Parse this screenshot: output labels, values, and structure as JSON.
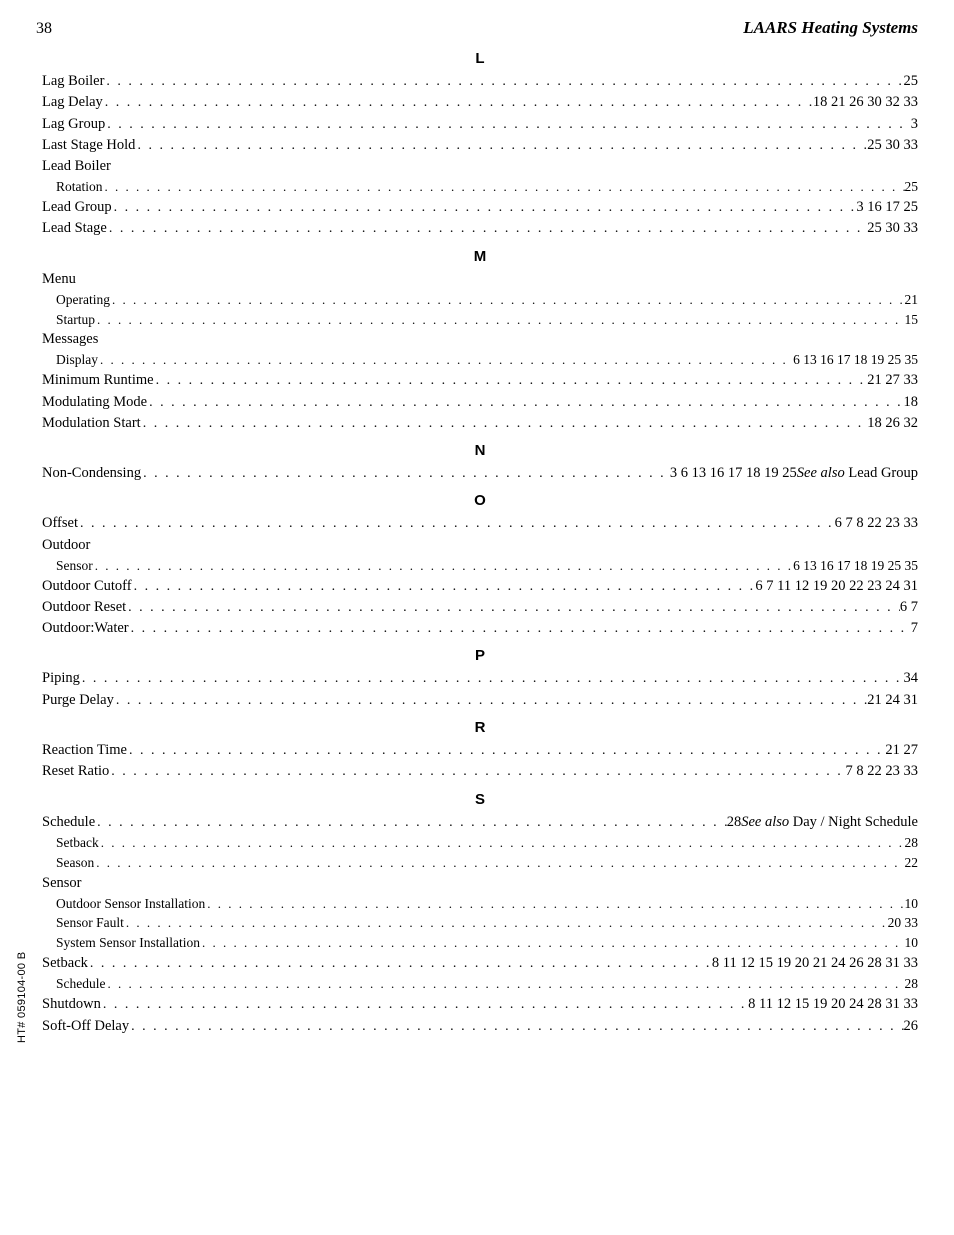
{
  "header": {
    "page_number": "38",
    "brand": "LAARS Heating Systems"
  },
  "side_note": "HT# 059104-00 B",
  "sections": [
    {
      "letter": "L",
      "items": [
        {
          "type": "entry",
          "term": "Lag Boiler",
          "pages": "25"
        },
        {
          "type": "entry",
          "term": "Lag Delay",
          "pages": "18 21 26 30 32 33"
        },
        {
          "type": "entry",
          "term": "Lag Group",
          "pages": "3"
        },
        {
          "type": "entry",
          "term": "Last Stage Hold",
          "pages": "25 30 33"
        },
        {
          "type": "group",
          "label": "Lead Boiler"
        },
        {
          "type": "entry",
          "term": "Rotation",
          "pages": "25",
          "indent": 1
        },
        {
          "type": "entry",
          "term": "Lead Group",
          "pages": "3 16 17 25"
        },
        {
          "type": "entry",
          "term": "Lead Stage",
          "pages": "25 30 33"
        }
      ]
    },
    {
      "letter": "M",
      "items": [
        {
          "type": "group",
          "label": "Menu"
        },
        {
          "type": "entry",
          "term": "Operating",
          "pages": "21",
          "indent": 1
        },
        {
          "type": "entry",
          "term": "Startup",
          "pages": "15",
          "indent": 1
        },
        {
          "type": "group",
          "label": "Messages"
        },
        {
          "type": "entry",
          "term": "Display",
          "pages": "6 13 16 17 18 19 25 35",
          "indent": 1
        },
        {
          "type": "entry",
          "term": "Minimum Runtime",
          "pages": "21 27 33"
        },
        {
          "type": "entry",
          "term": "Modulating Mode",
          "pages": "18"
        },
        {
          "type": "entry",
          "term": "Modulation Start",
          "pages": "18 26 32"
        }
      ]
    },
    {
      "letter": "N",
      "items": [
        {
          "type": "entry",
          "term": "Non-Condensing",
          "pages": "3 6 13 16 17 18 19 25",
          "see_also": "Lead Group"
        }
      ]
    },
    {
      "letter": "O",
      "items": [
        {
          "type": "entry",
          "term": "Offset",
          "pages": "6 7 8 22 23 33"
        },
        {
          "type": "group",
          "label": "Outdoor"
        },
        {
          "type": "entry",
          "term": "Sensor",
          "pages": "6 13 16 17 18 19 25 35",
          "indent": 1
        },
        {
          "type": "entry",
          "term": "Outdoor Cutoff",
          "pages": "6 7 11 12 19 20 22 23 24 31"
        },
        {
          "type": "entry",
          "term": "Outdoor Reset",
          "pages": "6 7"
        },
        {
          "type": "entry",
          "term": "Outdoor:Water",
          "pages": "7"
        }
      ]
    },
    {
      "letter": "P",
      "items": [
        {
          "type": "entry",
          "term": "Piping",
          "pages": "34"
        },
        {
          "type": "entry",
          "term": "Purge Delay",
          "pages": "21 24 31"
        }
      ]
    },
    {
      "letter": "R",
      "items": [
        {
          "type": "entry",
          "term": "Reaction Time",
          "pages": "21 27"
        },
        {
          "type": "entry",
          "term": "Reset Ratio",
          "pages": "7 8 22 23 33"
        }
      ]
    },
    {
      "letter": "S",
      "items": [
        {
          "type": "entry",
          "term": "Schedule",
          "pages": "28",
          "see_also": "Day / Night Schedule"
        },
        {
          "type": "entry",
          "term": "Setback",
          "pages": "28",
          "indent": 1
        },
        {
          "type": "entry",
          "term": "Season",
          "pages": "22",
          "indent": 1
        },
        {
          "type": "group",
          "label": "Sensor"
        },
        {
          "type": "entry",
          "term": "Outdoor Sensor Installation",
          "pages": "10",
          "indent": 1
        },
        {
          "type": "entry",
          "term": "Sensor Fault",
          "pages": "20 33",
          "indent": 1
        },
        {
          "type": "entry",
          "term": "System Sensor Installation",
          "pages": "10",
          "indent": 1
        },
        {
          "type": "entry",
          "term": "Setback",
          "pages": "8 11 12 15 19 20 21 24 26 28 31 33"
        },
        {
          "type": "entry",
          "term": "Schedule",
          "pages": "28",
          "indent": 1
        },
        {
          "type": "entry",
          "term": "Shutdown",
          "pages": "8 11 12 15 19 20 24 28 31 33"
        },
        {
          "type": "entry",
          "term": "Soft-Off Delay",
          "pages": "26"
        }
      ]
    }
  ]
}
